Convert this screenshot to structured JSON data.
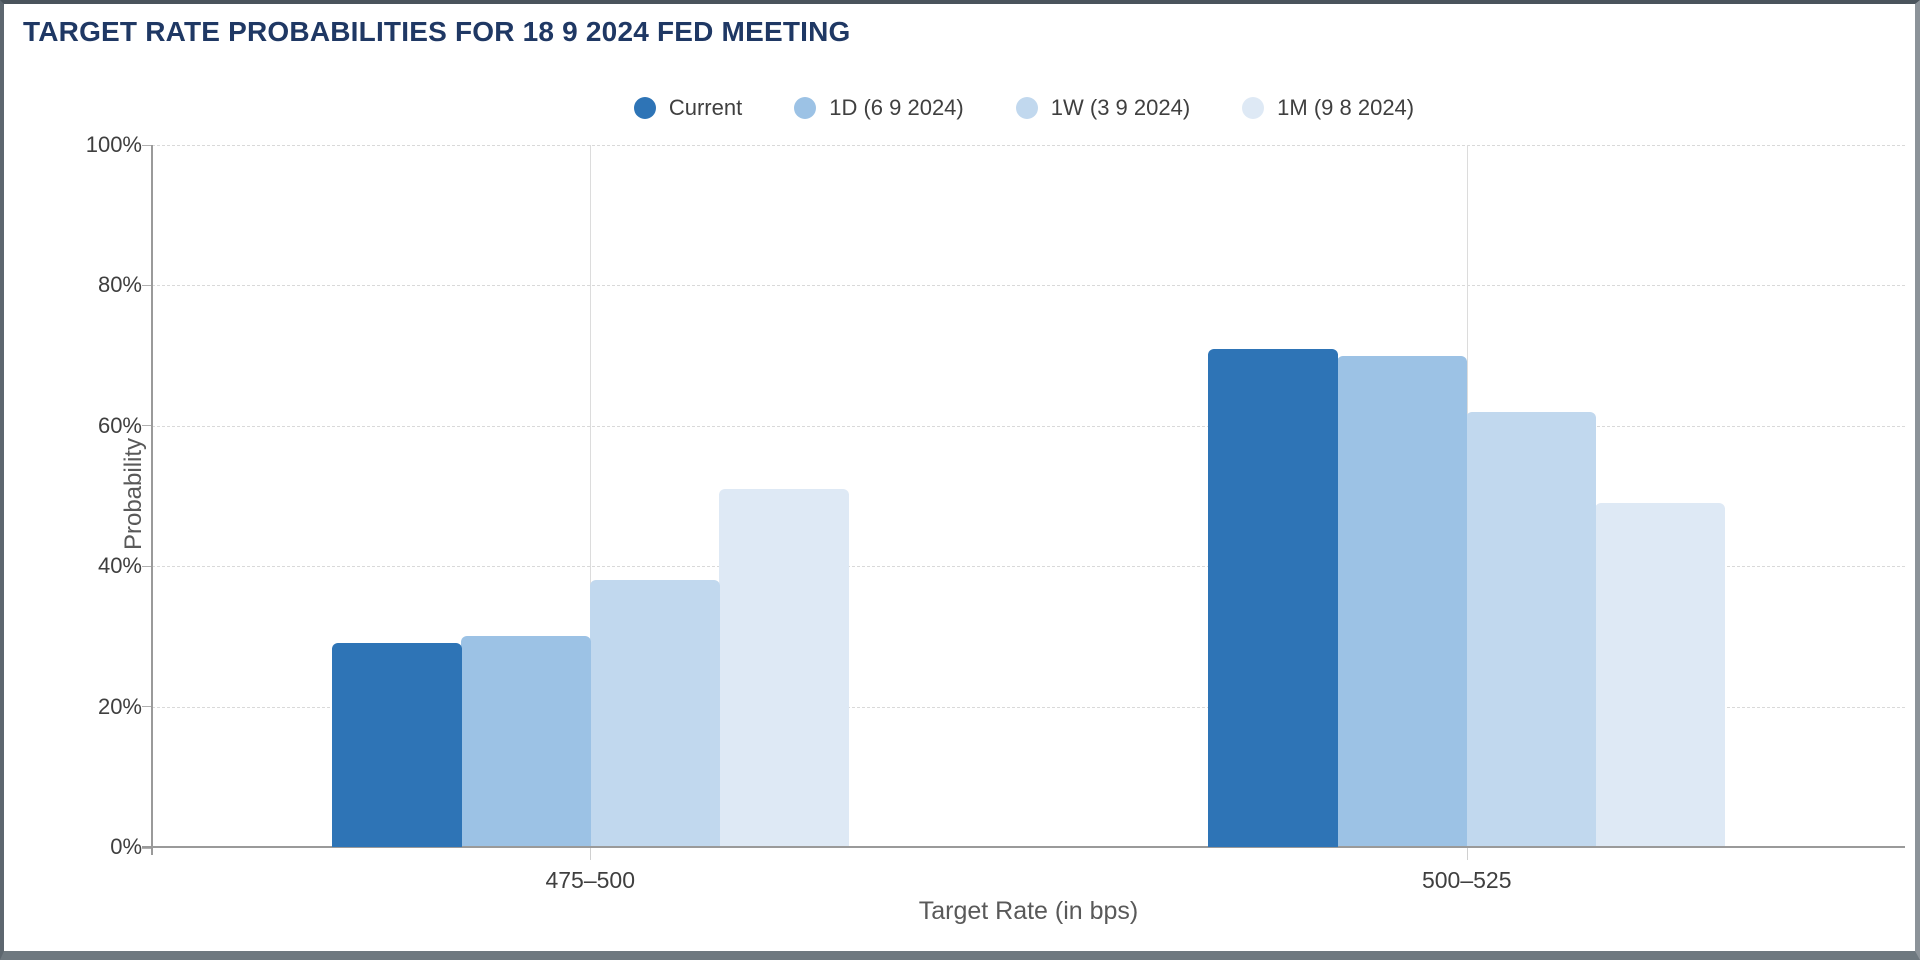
{
  "window": {
    "border_color": "#6e787f"
  },
  "chart_data": {
    "type": "bar",
    "title": "TARGET RATE PROBABILITIES FOR 18 9 2024 FED MEETING",
    "xlabel": "Target Rate (in bps)",
    "ylabel": "Probability",
    "ylim": [
      0,
      100
    ],
    "y_ticks": [
      0,
      20,
      40,
      60,
      80,
      100
    ],
    "y_tick_labels": [
      "0%",
      "20%",
      "40%",
      "60%",
      "80%",
      "100%"
    ],
    "grid": "horizontal dashed + vertical at category centers",
    "legend_position": "top center",
    "categories": [
      "475–500",
      "500–525"
    ],
    "series": [
      {
        "name": "Current",
        "color": "#2e74b6",
        "values": [
          29,
          71
        ]
      },
      {
        "name": "1D (6 9 2024)",
        "color": "#9cc2e5",
        "values": [
          30,
          70
        ]
      },
      {
        "name": "1W (3 9 2024)",
        "color": "#c1d8ee",
        "values": [
          38,
          62
        ]
      },
      {
        "name": "1M (9 8 2024)",
        "color": "#dee9f5",
        "values": [
          51,
          49
        ]
      }
    ],
    "title_color": "#1f3864",
    "axis_text_color": "#3f3f3f",
    "axis_title_color": "#595959"
  }
}
